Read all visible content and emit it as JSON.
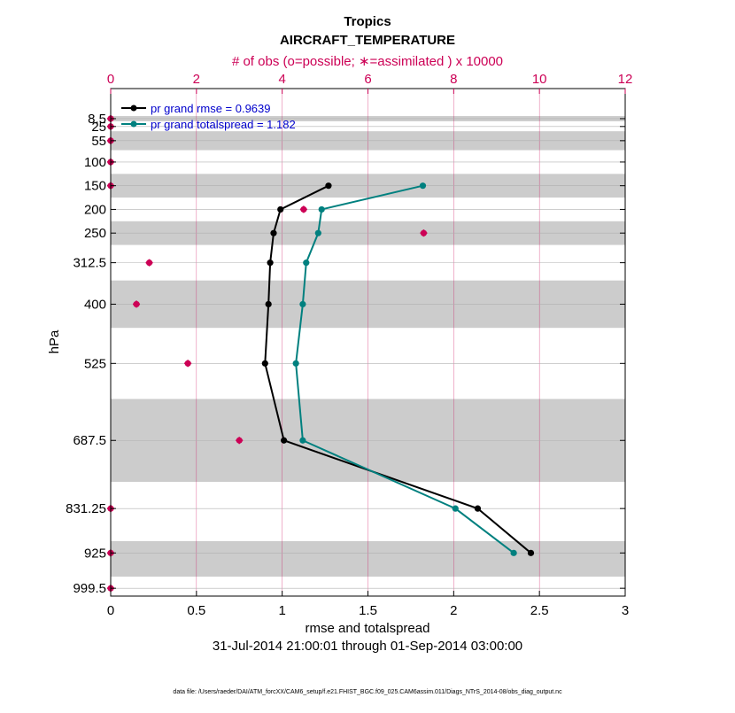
{
  "chart_data": {
    "type": "line",
    "title": "Tropics",
    "subtitle": "AIRCRAFT_TEMPERATURE",
    "top_axis_label": "# of obs (o=possible; ∗=assimilated ) x 10000",
    "xlabel": "rmse and totalspread",
    "ylabel": "hPa",
    "date_range": "31-Jul-2014 21:00:01 through 01-Sep-2014 03:00:00",
    "footer": "data file: /Users/raeder/DAI/ATM_forcXX/CAM6_setup/f.e21.FHIST_BGC.f09_025.CAM6assim.011/Diags_NTrS_2014-08/obs_diag_output.nc",
    "xlim": [
      0,
      3
    ],
    "xticks": [
      "0",
      "0.5",
      "1",
      "1.5",
      "2",
      "2.5",
      "3"
    ],
    "top_xlim": [
      0,
      12
    ],
    "top_xticks": [
      "0",
      "2",
      "4",
      "6",
      "8",
      "10",
      "12"
    ],
    "y_scale": "linear, reversed",
    "ylim": [
      1016,
      -55
    ],
    "levels": [
      8.5,
      25,
      55,
      100,
      150,
      200,
      250,
      312.5,
      400,
      525,
      687.5,
      831.25,
      925,
      999.5
    ],
    "level_labels": [
      "8.5",
      "25",
      "55",
      "100",
      "150",
      "200",
      "250",
      "312.5",
      "400",
      "525",
      "687.5",
      "831.25",
      "925",
      "999.5"
    ],
    "layer_bands": [
      [
        3,
        14
      ],
      [
        35,
        75
      ],
      [
        125,
        175
      ],
      [
        225,
        275
      ],
      [
        350,
        450
      ],
      [
        600,
        775
      ],
      [
        900,
        975
      ]
    ],
    "series": [
      {
        "name": "pr grand rmse = 0.9639",
        "color": "#000000",
        "levels": [
          150,
          200,
          250,
          312.5,
          400,
          525,
          687.5,
          831.25,
          925
        ],
        "values": [
          1.27,
          0.99,
          0.95,
          0.93,
          0.92,
          0.9,
          1.01,
          2.14,
          2.45
        ]
      },
      {
        "name": "pr grand totalspread = 1.182",
        "color": "#00807f",
        "levels": [
          150,
          200,
          250,
          312.5,
          400,
          525,
          687.5,
          831.25,
          925
        ],
        "values": [
          1.82,
          1.23,
          1.21,
          1.14,
          1.12,
          1.08,
          1.12,
          2.01,
          2.35
        ]
      }
    ],
    "obs_assimilated": {
      "color": "#cc0055",
      "levels": [
        8.5,
        25,
        55,
        100,
        150,
        200,
        250,
        312.5,
        400,
        525,
        687.5,
        831.25,
        925,
        999.5
      ],
      "values_x10000": [
        0.0,
        0.0,
        0.0,
        0.0,
        0.0,
        4.5,
        7.3,
        0.9,
        0.6,
        1.8,
        3.0,
        0.0,
        0.0,
        0.0
      ]
    },
    "grid": true,
    "legend_position": "top-left"
  }
}
